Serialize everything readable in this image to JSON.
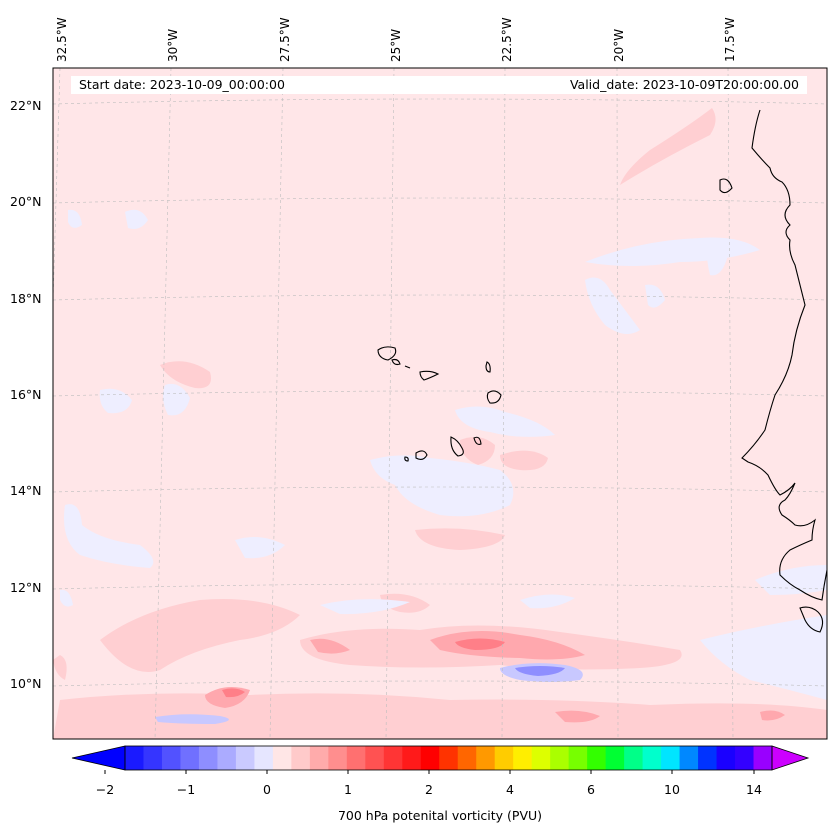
{
  "map": {
    "start_date": "Start date: 2023-10-09_00:00:00",
    "valid_date": "Valid_date: 2023-10-09T20:00:00.00",
    "lon_labels": [
      "32.5°W",
      "30°W",
      "27.5°W",
      "25°W",
      "22.5°W",
      "20°W",
      "17.5°W"
    ],
    "lat_labels": [
      "22°N",
      "20°N",
      "18°N",
      "16°N",
      "14°N",
      "12°N",
      "10°N"
    ],
    "field": "700 hPa potenital vorticity (PVU)",
    "background_color": "#ffe6e8",
    "coastline_color": "#000000"
  },
  "colorbar": {
    "label": "700 hPa potenital vorticity (PVU)",
    "ticks": [
      "−2",
      "−1",
      "0",
      "1",
      "2",
      "4",
      "6",
      "10",
      "14"
    ],
    "under_color": "#0000ff",
    "over_color": "#cc00ff",
    "colors": [
      "#1a1aff",
      "#3535ff",
      "#5252ff",
      "#7070ff",
      "#8e8eff",
      "#ababff",
      "#cacaff",
      "#e6e6ff",
      "#ffe6e6",
      "#ffcaca",
      "#ffabab",
      "#ff8e8e",
      "#ff7070",
      "#ff5252",
      "#ff3535",
      "#ff1a1a",
      "#ff0000",
      "#ff3300",
      "#ff6600",
      "#ff9900",
      "#ffcc00",
      "#ffee00",
      "#ddff00",
      "#aaff00",
      "#77ff00",
      "#33ff00",
      "#00ff33",
      "#00ff88",
      "#00ffcc",
      "#00e5ff",
      "#0088ff",
      "#0033ff",
      "#1a00ff",
      "#3300ff",
      "#9900ff"
    ]
  }
}
